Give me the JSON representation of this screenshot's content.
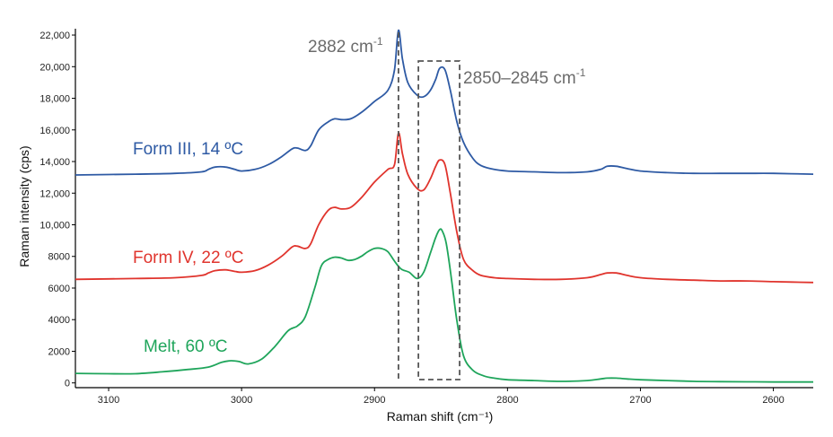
{
  "chart_data": {
    "type": "line",
    "title": "",
    "xlabel": "Raman shift (cm⁻¹)",
    "ylabel": "Raman intensity (cps)",
    "xlim": [
      3125,
      2570
    ],
    "ylim": [
      -300,
      22400
    ],
    "xticks": [
      3100,
      3000,
      2900,
      2800,
      2700,
      2600
    ],
    "xtick_labels": [
      "3100",
      "3000",
      "2900",
      "2800",
      "2700",
      "2600"
    ],
    "yticks": [
      0,
      2000,
      4000,
      6000,
      8000,
      10000,
      12000,
      14000,
      16000,
      18000,
      20000,
      22000
    ],
    "ytick_labels": [
      "0",
      "2000",
      "4000",
      "6000",
      "8000",
      "10,000",
      "12,000",
      "14,000",
      "16,000",
      "18,000",
      "20,000",
      "22,000"
    ],
    "series": [
      {
        "name": "Form III, 14 ºC",
        "color": "#2e5aa4",
        "x": [
          3125,
          3080,
          3050,
          3030,
          3025,
          3020,
          3012,
          3005,
          3000,
          2990,
          2980,
          2970,
          2962,
          2958,
          2952,
          2948,
          2942,
          2935,
          2930,
          2925,
          2918,
          2910,
          2900,
          2890,
          2885,
          2882,
          2879,
          2875,
          2868,
          2863,
          2858,
          2854,
          2851,
          2847,
          2843,
          2838,
          2833,
          2826,
          2820,
          2810,
          2800,
          2780,
          2760,
          2740,
          2730,
          2725,
          2718,
          2710,
          2700,
          2680,
          2660,
          2640,
          2620,
          2600,
          2570
        ],
        "y": [
          13150,
          13200,
          13250,
          13350,
          13500,
          13650,
          13650,
          13500,
          13400,
          13500,
          13800,
          14300,
          14800,
          14850,
          14700,
          15000,
          16000,
          16500,
          16700,
          16650,
          16700,
          17100,
          17800,
          18500,
          19800,
          22300,
          20500,
          19000,
          18200,
          18100,
          18500,
          19200,
          19900,
          19800,
          18500,
          16500,
          15200,
          14200,
          13750,
          13500,
          13400,
          13350,
          13300,
          13350,
          13500,
          13700,
          13700,
          13550,
          13400,
          13300,
          13250,
          13250,
          13250,
          13250,
          13200
        ]
      },
      {
        "name": "Form IV, 22 ºC",
        "color": "#e0342d",
        "x": [
          3125,
          3080,
          3050,
          3030,
          3025,
          3020,
          3012,
          3005,
          3000,
          2990,
          2980,
          2970,
          2962,
          2958,
          2952,
          2948,
          2942,
          2935,
          2930,
          2925,
          2918,
          2910,
          2900,
          2890,
          2885,
          2882,
          2879,
          2875,
          2868,
          2863,
          2858,
          2854,
          2851,
          2847,
          2843,
          2838,
          2833,
          2826,
          2820,
          2810,
          2800,
          2780,
          2760,
          2740,
          2730,
          2725,
          2718,
          2710,
          2700,
          2680,
          2660,
          2640,
          2620,
          2600,
          2570
        ],
        "y": [
          6550,
          6600,
          6650,
          6800,
          6950,
          7100,
          7150,
          7050,
          7000,
          7100,
          7450,
          8000,
          8600,
          8650,
          8500,
          8800,
          10000,
          10900,
          11100,
          11000,
          11100,
          11700,
          12700,
          13500,
          13800,
          15800,
          14500,
          13200,
          12300,
          12200,
          12900,
          13700,
          14100,
          13800,
          12000,
          9500,
          7800,
          7100,
          6800,
          6650,
          6600,
          6550,
          6550,
          6650,
          6850,
          6950,
          6950,
          6800,
          6650,
          6550,
          6500,
          6450,
          6450,
          6400,
          6350
        ]
      },
      {
        "name": "Melt, 60 ºC",
        "color": "#1fa55b",
        "x": [
          3125,
          3100,
          3080,
          3060,
          3040,
          3025,
          3015,
          3008,
          3002,
          2995,
          2985,
          2975,
          2965,
          2958,
          2952,
          2945,
          2940,
          2935,
          2930,
          2925,
          2920,
          2915,
          2910,
          2905,
          2900,
          2895,
          2890,
          2885,
          2880,
          2874,
          2868,
          2863,
          2858,
          2854,
          2851,
          2849,
          2846,
          2842,
          2838,
          2833,
          2826,
          2818,
          2810,
          2800,
          2780,
          2760,
          2740,
          2730,
          2725,
          2718,
          2710,
          2700,
          2680,
          2660,
          2640,
          2620,
          2600,
          2570
        ],
        "y": [
          600,
          580,
          580,
          700,
          850,
          1000,
          1300,
          1400,
          1350,
          1200,
          1500,
          2300,
          3300,
          3600,
          4200,
          6000,
          7400,
          7800,
          7950,
          7900,
          7750,
          7800,
          8000,
          8300,
          8500,
          8500,
          8300,
          7700,
          7200,
          7000,
          6600,
          7000,
          8200,
          9200,
          9700,
          9600,
          8800,
          6500,
          3900,
          1700,
          800,
          450,
          300,
          200,
          150,
          100,
          150,
          250,
          300,
          300,
          250,
          200,
          150,
          100,
          80,
          70,
          60,
          60
        ]
      }
    ],
    "series_labels": [
      {
        "text": "Form III, 14 ºC",
        "color": "#2e5aa4"
      },
      {
        "text": "Form IV, 22 ºC",
        "color": "#e0342d"
      },
      {
        "text": "Melt, 60 ºC",
        "color": "#1fa55b"
      }
    ],
    "annotations": [
      {
        "id": "peak_2882",
        "text": "2882 cm",
        "sup": "-1",
        "type": "vertical-dashed-line",
        "x": 2882
      },
      {
        "id": "band_2850",
        "text": "2850–2845 cm",
        "sup": "-1",
        "type": "dashed-box",
        "x_from": 2867,
        "x_to": 2836
      }
    ]
  }
}
